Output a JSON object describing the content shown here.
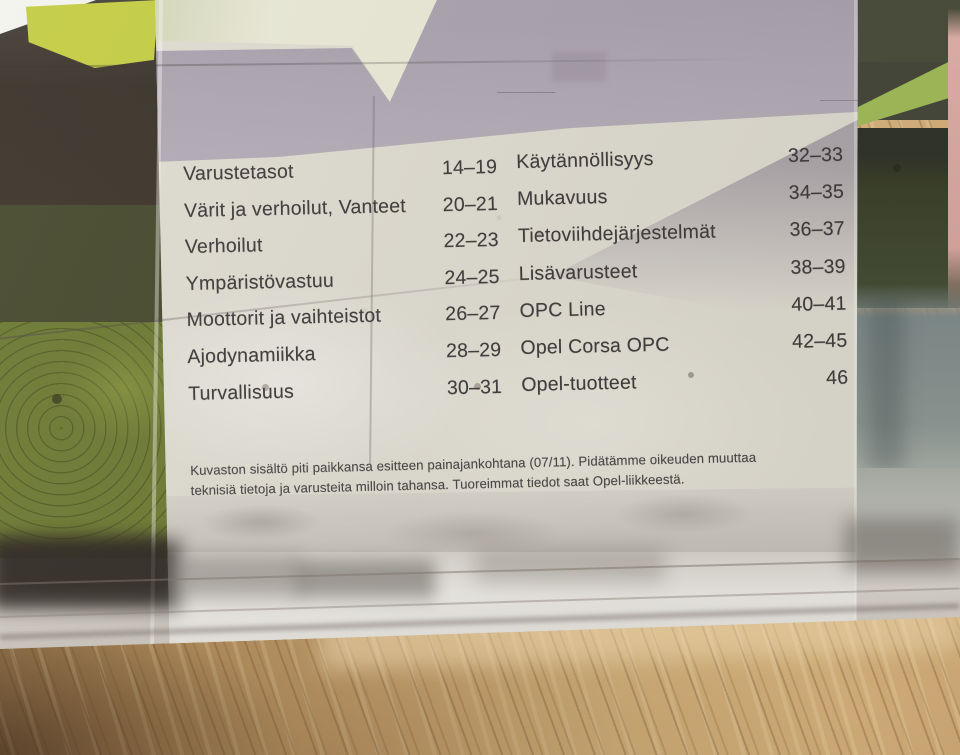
{
  "toc": {
    "left_column": [
      {
        "label": "Varustetasot",
        "pages": "14–19"
      },
      {
        "label": "Värit ja verhoilut, Vanteet",
        "pages": "20–21"
      },
      {
        "label": "Verhoilut",
        "pages": "22–23"
      },
      {
        "label": "Ympäristövastuu",
        "pages": "24–25"
      },
      {
        "label": "Moottorit ja vaihteistot",
        "pages": "26–27"
      },
      {
        "label": "Ajodynamiikka",
        "pages": "28–29"
      },
      {
        "label": "Turvallisuus",
        "pages": "30–31"
      }
    ],
    "right_column": [
      {
        "label": "Käytännöllisyys",
        "pages": "32–33"
      },
      {
        "label": "Mukavuus",
        "pages": "34–35"
      },
      {
        "label": "Tietoviihdejärjestelmät",
        "pages": "36–37"
      },
      {
        "label": "Lisävarusteet",
        "pages": "38–39"
      },
      {
        "label": "OPC Line",
        "pages": "40–41"
      },
      {
        "label": "Opel Corsa OPC",
        "pages": "42–45"
      },
      {
        "label": "Opel-tuotteet",
        "pages": "46"
      }
    ]
  },
  "footer": {
    "line1": "Kuvaston sisältö piti paikkansa esitteen painajankohtana (07/11). Pidätämme oikeuden muuttaa",
    "line2": "teknisiä tietoja ja varusteita milloin tahansa. Tuoreimmat tiedot saat Opel-liikkeestä."
  },
  "colors": {
    "chartreuse": "#c4cd44",
    "moss_green": "#6d7a33",
    "dark_olive": "#474a2e",
    "dark_brown": "#3b332a",
    "grey_mauve": "#aaa2ae",
    "pale_cream": "#e9e8d6",
    "overlay_paper": "#dedbd0",
    "bright_green_wedge": "#a2bd5a",
    "blue_grey": "#7f8b8b",
    "pink_edge": "#e2b2aa",
    "wood_light": "#ddba83",
    "wood_dark": "#83653f",
    "text": "#403c3c"
  }
}
